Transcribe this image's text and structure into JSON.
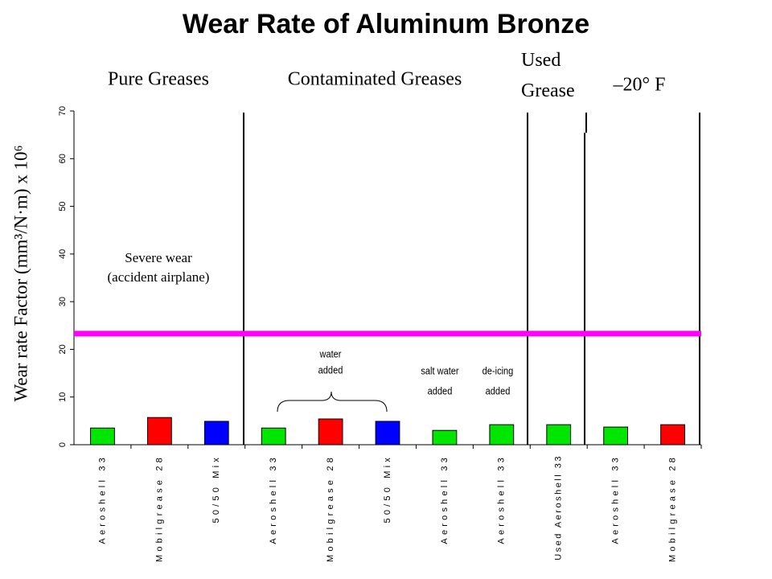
{
  "chart_data": {
    "type": "bar",
    "title": "Wear Rate of Aluminum Bronze",
    "y_label": "Wear rate Factor (mm³/N·m) x 10⁶",
    "groups": [
      "Pure Greases",
      "Contaminated Greases",
      "Used Grease",
      "–20° F"
    ],
    "categories": [
      "Aeroshell 33",
      "Mobilgrease 28",
      "50/50 Mix",
      "Aeroshell 33",
      "Mobilgrease 28",
      "50/50 Mix",
      "Aeroshell 33",
      "Aeroshell 33",
      "Used Aeroshell 33",
      "Aeroshell 33",
      "Mobilgrease 28"
    ],
    "values": [
      3.5,
      5.7,
      4.9,
      3.5,
      5.4,
      4.9,
      3.0,
      4.2,
      4.2,
      3.7,
      4.2
    ],
    "colors": [
      "#00e600",
      "#ff0000",
      "#0000ff",
      "#00e600",
      "#ff0000",
      "#0000ff",
      "#00e600",
      "#00e600",
      "#00e600",
      "#00e600",
      "#ff0000"
    ],
    "reference_line": {
      "value": 23.3,
      "color": "#ff00ff"
    },
    "annotations": [
      {
        "lines": [
          "Severe wear",
          "(accident airplane)"
        ]
      },
      {
        "lines": [
          "water",
          "added"
        ]
      },
      {
        "lines": [
          "salt water",
          "added"
        ]
      },
      {
        "lines": [
          "de-icing",
          "added"
        ]
      }
    ],
    "ylim": [
      0,
      70
    ],
    "yticks": [
      0,
      10,
      20,
      30,
      40,
      50,
      60,
      70
    ]
  }
}
